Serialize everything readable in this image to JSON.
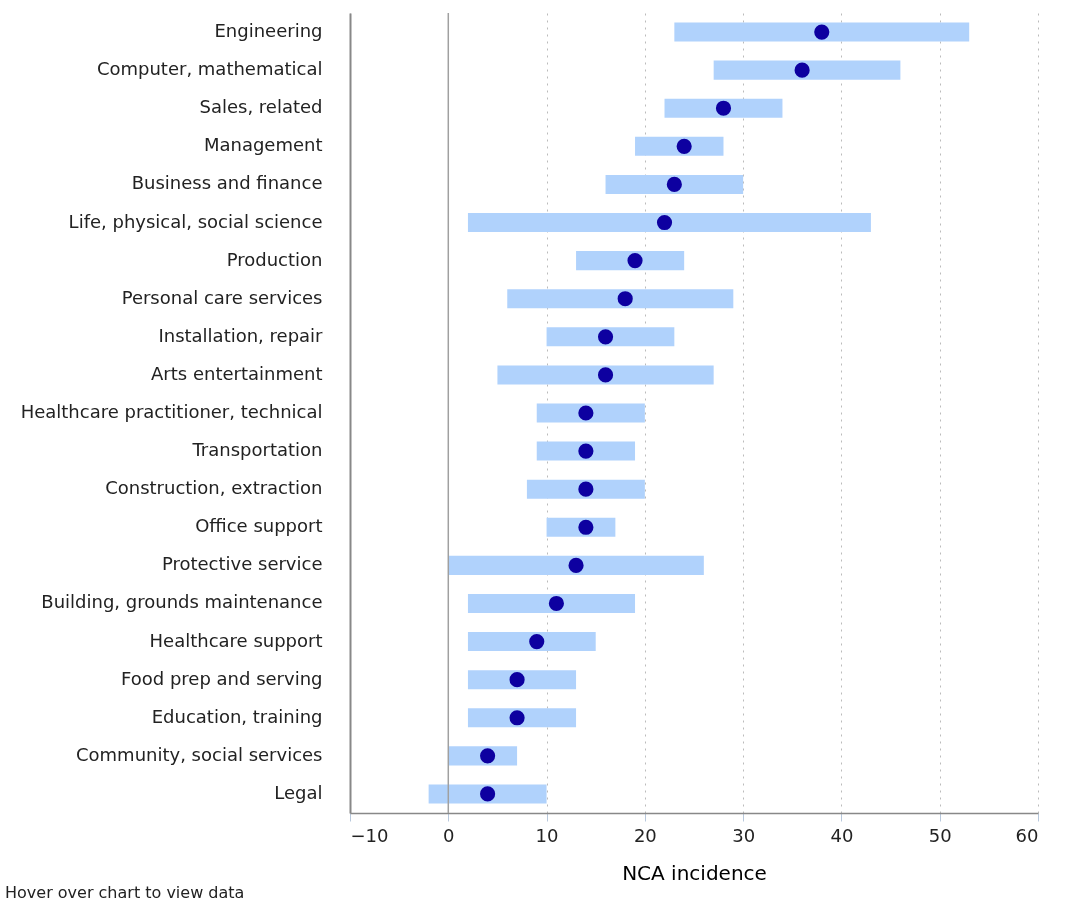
{
  "chart_data": {
    "type": "bar",
    "orientation": "horizontal",
    "xlabel": "NCA incidence",
    "categories": [
      "Engineering",
      "Computer, mathematical",
      "Sales, related",
      "Management",
      "Business and finance",
      "Life, physical, social science",
      "Production",
      "Personal care services",
      "Installation, repair",
      "Arts entertainment",
      "Healthcare practitioner, technical",
      "Transportation",
      "Construction, extraction",
      "Office support",
      "Protective service",
      "Building, grounds maintenance",
      "Healthcare support",
      "Food prep and serving",
      "Education, training",
      "Community, social services",
      "Legal"
    ],
    "series": [
      {
        "color": "#b0d2fc",
        "base": [
          23,
          27,
          22,
          19,
          16,
          2,
          13,
          6,
          10,
          5,
          9,
          9,
          8,
          10,
          0,
          2,
          2,
          2,
          2,
          0,
          -2
        ],
        "values": [
          30,
          19,
          12,
          9,
          14,
          41,
          11,
          23,
          13,
          22,
          11,
          10,
          12,
          7,
          26,
          17,
          13,
          11,
          11,
          7,
          12
        ]
      },
      {
        "type": "scatter",
        "marker": "circle",
        "color": "#0d00a0",
        "values": [
          38,
          36,
          28,
          24,
          23,
          22,
          19,
          18,
          16,
          16,
          14,
          14,
          14,
          14,
          13,
          11,
          9,
          7,
          7,
          4,
          4
        ]
      }
    ],
    "xlim": [
      -10,
      60
    ],
    "xticks": [
      -10,
      0,
      10,
      20,
      30,
      40,
      50,
      60
    ],
    "grid": "x",
    "ref_lines": [
      {
        "axis": "x",
        "value": 0,
        "color": "#a0a0a0",
        "line_style": "solid"
      }
    ],
    "annotations": [
      "Hover over chart to view data"
    ]
  }
}
